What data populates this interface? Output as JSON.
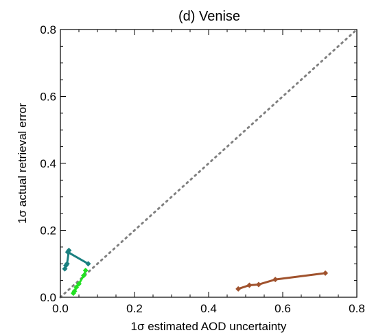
{
  "chart_data": {
    "type": "line",
    "title": "(d) Venise",
    "xlabel": "1σ estimated AOD uncertainty",
    "ylabel": "1σ actual retrieval error",
    "xlim": [
      0.0,
      0.8
    ],
    "ylim": [
      0.0,
      0.8
    ],
    "xticks": [
      "0.0",
      "0.2",
      "0.4",
      "0.6",
      "0.8"
    ],
    "yticks": [
      "0.0",
      "0.2",
      "0.4",
      "0.6",
      "0.8"
    ],
    "reference_line": {
      "style": "dotted",
      "color": "#808080",
      "points": [
        [
          0.0,
          0.0
        ],
        [
          0.8,
          0.8
        ]
      ]
    },
    "series": [
      {
        "color": "#1a8080",
        "x": [
          0.015,
          0.012,
          0.018,
          0.023,
          0.02,
          0.075
        ],
        "y": [
          0.095,
          0.085,
          0.1,
          0.14,
          0.135,
          0.1
        ]
      },
      {
        "color": "#22e022",
        "x": [
          0.068,
          0.063,
          0.05,
          0.043,
          0.038,
          0.035
        ],
        "y": [
          0.08,
          0.065,
          0.04,
          0.03,
          0.018,
          0.012
        ]
      },
      {
        "color": "#a0522d",
        "x": [
          0.48,
          0.51,
          0.535,
          0.58,
          0.715
        ],
        "y": [
          0.025,
          0.036,
          0.038,
          0.053,
          0.072
        ]
      }
    ]
  }
}
